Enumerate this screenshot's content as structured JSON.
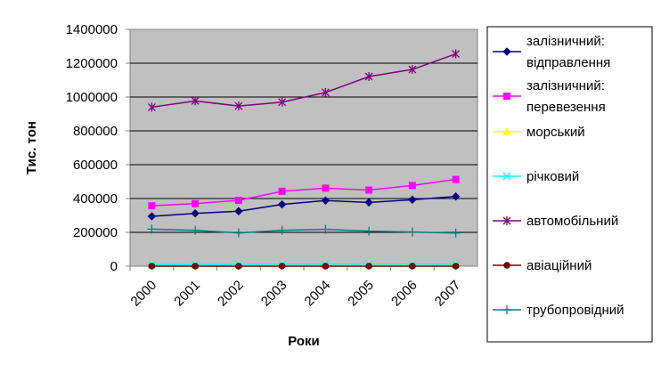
{
  "chart_data": {
    "type": "line",
    "title": "",
    "xlabel": "Роки",
    "ylabel": "Тис. тон",
    "categories": [
      "2000",
      "2001",
      "2002",
      "2003",
      "2004",
      "2005",
      "2006",
      "2007"
    ],
    "ylim": [
      0,
      1400000
    ],
    "y_ticks": [
      "0",
      "200000",
      "400000",
      "600000",
      "800000",
      "1000000",
      "1200000",
      "1400000"
    ],
    "grid": "horizontal",
    "plot_background": "#C0C0C0",
    "legend_position": "right",
    "series": [
      {
        "name": "залізничний: відправлення",
        "name_lines": [
          "залізничний:",
          "відправлення"
        ],
        "color": "#000080",
        "marker": "diamond",
        "values": [
          295000,
          312000,
          325000,
          365000,
          388000,
          377000,
          393000,
          412000
        ]
      },
      {
        "name": "залізничний: перевезення",
        "name_lines": [
          "залізничний:",
          "перевезення"
        ],
        "color": "#FF00FF",
        "marker": "square",
        "values": [
          357000,
          370000,
          389000,
          443000,
          461000,
          450000,
          477000,
          513000
        ]
      },
      {
        "name": "морський",
        "name_lines": [
          "морський"
        ],
        "color": "#FFFF00",
        "marker": "triangle",
        "values": [
          5000,
          5000,
          5000,
          6000,
          6000,
          6000,
          6000,
          6000
        ]
      },
      {
        "name": "річковий",
        "name_lines": [
          "річковий"
        ],
        "color": "#00FFFF",
        "marker": "x",
        "values": [
          9000,
          9000,
          10000,
          11000,
          11000,
          12000,
          11000,
          11000
        ]
      },
      {
        "name": "автомобільний",
        "name_lines": [
          "автомобільний"
        ],
        "color": "#800080",
        "marker": "asterisk",
        "values": [
          940000,
          977000,
          947000,
          970000,
          1027000,
          1121000,
          1163000,
          1255000
        ]
      },
      {
        "name": "авіаційний",
        "name_lines": [
          "авіаційний"
        ],
        "color": "#800000",
        "marker": "circle",
        "values": [
          300,
          300,
          300,
          300,
          300,
          300,
          300,
          300
        ]
      },
      {
        "name": "трубопровідний",
        "name_lines": [
          "трубопровідний"
        ],
        "color": "#008080",
        "marker": "plus",
        "values": [
          219000,
          212000,
          197000,
          212000,
          218000,
          207000,
          202000,
          196000
        ]
      }
    ]
  }
}
